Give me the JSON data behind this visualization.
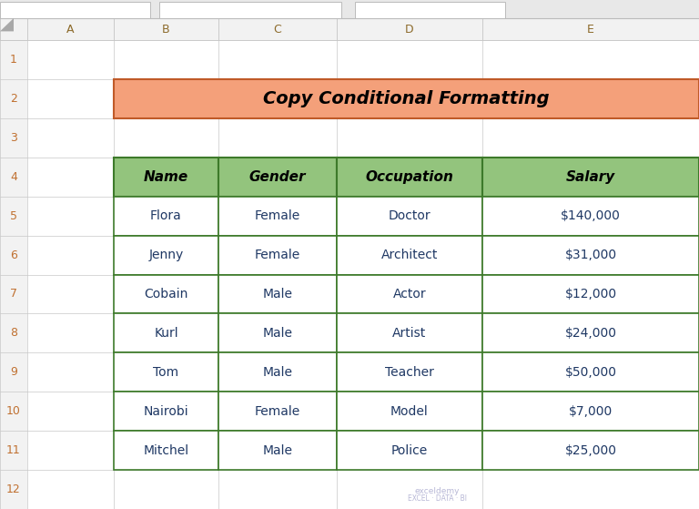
{
  "title": "Copy Conditional Formatting",
  "title_bg_color": "#F4A07A",
  "title_border_color": "#C05A28",
  "title_text_color": "#000000",
  "header_bg_color": "#93C47D",
  "header_border_color": "#3D7A2A",
  "header_text_color": "#000000",
  "cell_bg_color": "#FFFFFF",
  "cell_border_color": "#3D7A2A",
  "col_labels": [
    "Name",
    "Gender",
    "Occupation",
    "Salary"
  ],
  "rows": [
    [
      "Flora",
      "Female",
      "Doctor",
      "$140,000"
    ],
    [
      "Jenny",
      "Female",
      "Architect",
      "$31,000"
    ],
    [
      "Cobain",
      "Male",
      "Actor",
      "$12,000"
    ],
    [
      "Kurl",
      "Male",
      "Artist",
      "$24,000"
    ],
    [
      "Tom",
      "Male",
      "Teacher",
      "$50,000"
    ],
    [
      "Nairobi",
      "Female",
      "Model",
      "$7,000"
    ],
    [
      "Mitchel",
      "Male",
      "Police",
      "$25,000"
    ]
  ],
  "excel_bg_color": "#FFFFFF",
  "grid_line_color": "#C8C8C8",
  "row_header_color": "#F2F2F2",
  "col_header_color": "#F2F2F2",
  "col_header_text_color": "#8C6A2A",
  "row_num_text_color": "#C07030",
  "col_letters": [
    "A",
    "B",
    "C",
    "D",
    "E"
  ],
  "watermark_line1": "exceldemy",
  "watermark_line2": "EXCEL · DATA · BI",
  "tab_bar_color": "#E8E8E8",
  "tab_box_color": "#FFFFFF",
  "tab_border_color": "#BBBBBB",
  "cell_text_color": "#1F3864",
  "data_font_size": 10,
  "header_font_size": 11,
  "title_font_size": 14
}
